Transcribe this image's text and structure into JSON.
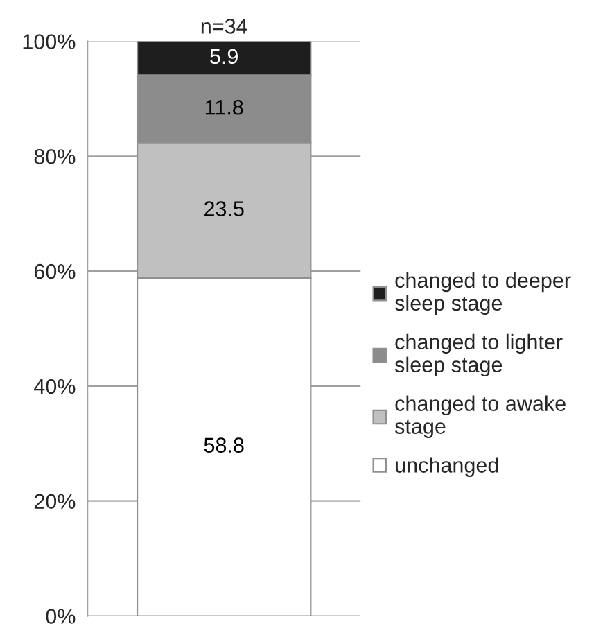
{
  "chart_data": {
    "type": "bar",
    "title": "n=34",
    "stacked": true,
    "categories": [
      null
    ],
    "series": [
      {
        "name": "unchanged",
        "color": "#ffffff",
        "values": [
          58.8
        ]
      },
      {
        "name": "changed to awake\nstage",
        "color": "#c0c0c0",
        "values": [
          23.5
        ]
      },
      {
        "name": "changed to lighter\nsleep stage",
        "color": "#8c8c8c",
        "values": [
          11.8
        ]
      },
      {
        "name": "changed to deeper\nsleep stage",
        "color": "#1e1e1e",
        "values": [
          5.9
        ]
      }
    ],
    "ylim": [
      0,
      100
    ],
    "yticks": [
      {
        "value": 0,
        "label": "0%"
      },
      {
        "value": 20,
        "label": "20%"
      },
      {
        "value": 40,
        "label": "40%"
      },
      {
        "value": 60,
        "label": "60%"
      },
      {
        "value": 80,
        "label": "80%"
      },
      {
        "value": 100,
        "label": "100%"
      }
    ],
    "grid": "y",
    "legend": "right",
    "data_labels": true
  }
}
